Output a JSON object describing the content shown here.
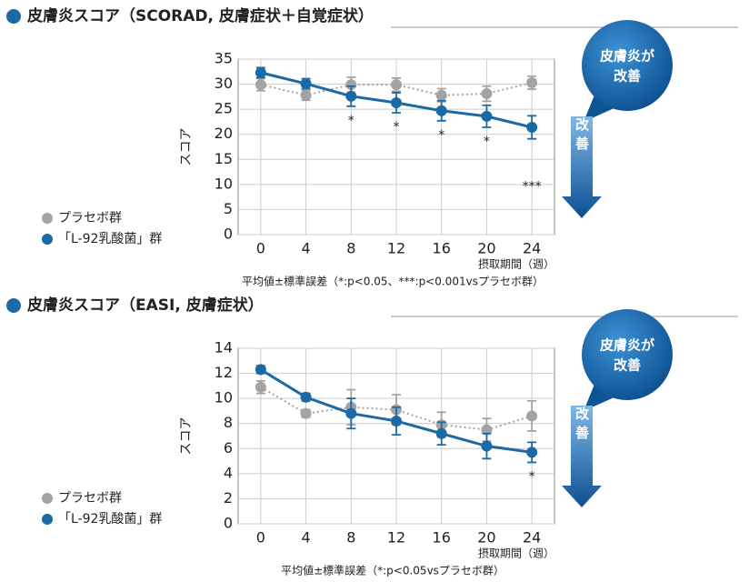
{
  "chart_data": [
    {
      "type": "line",
      "title": "皮膚炎スコア（SCORAD, 皮膚症状＋自覚症状）",
      "x": [
        0,
        4,
        8,
        12,
        16,
        20,
        24
      ],
      "xlim": [
        -2,
        26
      ],
      "xticks": [
        0,
        4,
        8,
        12,
        16,
        20,
        24
      ],
      "ylim": [
        0,
        35
      ],
      "yticks": [
        0,
        5,
        10,
        15,
        20,
        25,
        30,
        35
      ],
      "grid": true,
      "y_label": "スコア",
      "x_label": "摂取期間（週）",
      "note": "平均値±標準誤差（*:p<0.05、***:p<0.001vsプラセボ群）",
      "series": [
        {
          "name": "プラセボ群",
          "color": "#a3a3a3",
          "values": [
            29.9,
            27.8,
            29.9,
            29.9,
            27.8,
            28.1,
            30.3
          ],
          "errors": [
            1.2,
            1.0,
            1.5,
            1.3,
            1.3,
            1.5,
            1.3
          ]
        },
        {
          "name": "「L-92乳酸菌」群",
          "color": "#1b6aa5",
          "values": [
            32.3,
            30.1,
            27.6,
            26.3,
            24.7,
            23.6,
            21.4
          ],
          "errors": [
            1.0,
            1.0,
            2.0,
            2.0,
            2.0,
            2.2,
            2.3
          ]
        }
      ],
      "significance": [
        null,
        null,
        "*",
        "*",
        "*",
        "*",
        "***"
      ],
      "callout": [
        "皮膚炎が",
        "改善"
      ],
      "arrow_label": "改善"
    },
    {
      "type": "line",
      "title": "皮膚炎スコア（EASI, 皮膚症状）",
      "x": [
        0,
        4,
        8,
        12,
        16,
        20,
        24
      ],
      "xlim": [
        -2,
        26
      ],
      "xticks": [
        0,
        4,
        8,
        12,
        16,
        20,
        24
      ],
      "ylim": [
        0,
        14
      ],
      "yticks": [
        0,
        2,
        4,
        6,
        8,
        10,
        12,
        14
      ],
      "grid": true,
      "y_label": "スコア",
      "x_label": "摂取期間（週）",
      "note": "平均値±標準誤差（*:p<0.05vsプラセボ群）",
      "series": [
        {
          "name": "プラセボ群",
          "color": "#a3a3a3",
          "values": [
            10.9,
            8.8,
            9.3,
            9.1,
            7.9,
            7.5,
            8.6
          ],
          "errors": [
            0.5,
            0.3,
            1.4,
            1.2,
            1.0,
            0.9,
            1.2
          ]
        },
        {
          "name": "「L-92乳酸菌」群",
          "color": "#1b6aa5",
          "values": [
            12.3,
            10.1,
            8.8,
            8.2,
            7.2,
            6.2,
            5.7
          ],
          "errors": [
            0.3,
            0.3,
            1.2,
            1.1,
            0.9,
            1.0,
            0.8
          ]
        }
      ],
      "significance": [
        null,
        null,
        null,
        null,
        null,
        null,
        "*"
      ],
      "callout": [
        "皮膚炎が",
        "改善"
      ],
      "arrow_label": "改善"
    }
  ]
}
